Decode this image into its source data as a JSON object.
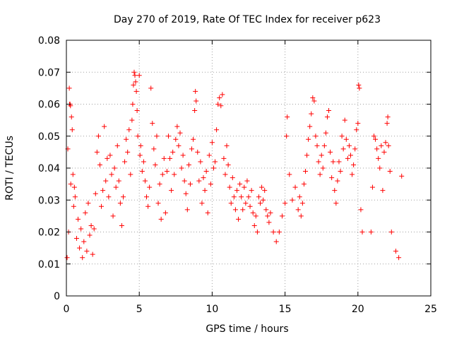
{
  "chart_data": {
    "type": "scatter",
    "title": "Day 270 of 2019, Rate Of TEC Index for receiver p623",
    "xlabel": "GPS time / hours",
    "ylabel": "ROTI / TECUs",
    "xlim": [
      0,
      25
    ],
    "ylim": [
      0,
      0.08
    ],
    "xticks": [
      0,
      5,
      10,
      15,
      20,
      25
    ],
    "xtick_labels": [
      "0",
      "5",
      "10",
      "15",
      "20",
      "25"
    ],
    "yticks": [
      0,
      0.01,
      0.02,
      0.03,
      0.04,
      0.05,
      0.06,
      0.07,
      0.08
    ],
    "ytick_labels": [
      "0",
      "0.01",
      "0.02",
      "0.03",
      "0.04",
      "0.05",
      "0.06",
      "0.07",
      "0.08"
    ],
    "grid": true,
    "marker": "+",
    "color": "#ff0000",
    "series": [
      {
        "name": "ROTI",
        "points": [
          [
            0.05,
            0.012
          ],
          [
            0.1,
            0.046
          ],
          [
            0.15,
            0.02
          ],
          [
            0.2,
            0.065
          ],
          [
            0.22,
            0.06
          ],
          [
            0.25,
            0.06
          ],
          [
            0.28,
            0.0595
          ],
          [
            0.3,
            0.035
          ],
          [
            0.35,
            0.056
          ],
          [
            0.4,
            0.052
          ],
          [
            0.45,
            0.038
          ],
          [
            0.5,
            0.028
          ],
          [
            0.55,
            0.034
          ],
          [
            0.6,
            0.031
          ],
          [
            0.7,
            0.018
          ],
          [
            0.8,
            0.024
          ],
          [
            0.9,
            0.015
          ],
          [
            1.0,
            0.021
          ],
          [
            1.1,
            0.012
          ],
          [
            1.2,
            0.017
          ],
          [
            1.3,
            0.026
          ],
          [
            1.4,
            0.014
          ],
          [
            1.5,
            0.029
          ],
          [
            1.6,
            0.019
          ],
          [
            1.7,
            0.022
          ],
          [
            1.8,
            0.013
          ],
          [
            1.9,
            0.021
          ],
          [
            2.0,
            0.032
          ],
          [
            2.1,
            0.045
          ],
          [
            2.2,
            0.05
          ],
          [
            2.3,
            0.041
          ],
          [
            2.4,
            0.028
          ],
          [
            2.5,
            0.033
          ],
          [
            2.6,
            0.053
          ],
          [
            2.7,
            0.036
          ],
          [
            2.8,
            0.043
          ],
          [
            2.9,
            0.031
          ],
          [
            3.0,
            0.044
          ],
          [
            3.1,
            0.038
          ],
          [
            3.2,
            0.025
          ],
          [
            3.3,
            0.04
          ],
          [
            3.4,
            0.034
          ],
          [
            3.5,
            0.047
          ],
          [
            3.6,
            0.036
          ],
          [
            3.7,
            0.029
          ],
          [
            3.8,
            0.022
          ],
          [
            3.9,
            0.031
          ],
          [
            4.0,
            0.042
          ],
          [
            4.1,
            0.049
          ],
          [
            4.2,
            0.045
          ],
          [
            4.3,
            0.052
          ],
          [
            4.4,
            0.038
          ],
          [
            4.5,
            0.055
          ],
          [
            4.55,
            0.06
          ],
          [
            4.6,
            0.066
          ],
          [
            4.65,
            0.07
          ],
          [
            4.7,
            0.069
          ],
          [
            4.75,
            0.067
          ],
          [
            4.8,
            0.064
          ],
          [
            4.85,
            0.058
          ],
          [
            4.9,
            0.05
          ],
          [
            5.0,
            0.069
          ],
          [
            5.05,
            0.044
          ],
          [
            5.1,
            0.047
          ],
          [
            5.2,
            0.039
          ],
          [
            5.3,
            0.042
          ],
          [
            5.4,
            0.036
          ],
          [
            5.5,
            0.031
          ],
          [
            5.6,
            0.028
          ],
          [
            5.7,
            0.034
          ],
          [
            5.8,
            0.065
          ],
          [
            5.9,
            0.054
          ],
          [
            6.0,
            0.046
          ],
          [
            6.1,
            0.041
          ],
          [
            6.2,
            0.05
          ],
          [
            6.3,
            0.029
          ],
          [
            6.4,
            0.035
          ],
          [
            6.5,
            0.024
          ],
          [
            6.6,
            0.038
          ],
          [
            6.7,
            0.043
          ],
          [
            6.8,
            0.026
          ],
          [
            6.9,
            0.039
          ],
          [
            7.0,
            0.05
          ],
          [
            7.1,
            0.043
          ],
          [
            7.2,
            0.033
          ],
          [
            7.3,
            0.045
          ],
          [
            7.4,
            0.038
          ],
          [
            7.5,
            0.049
          ],
          [
            7.6,
            0.053
          ],
          [
            7.7,
            0.047
          ],
          [
            7.8,
            0.051
          ],
          [
            7.9,
            0.04
          ],
          [
            8.0,
            0.044
          ],
          [
            8.1,
            0.036
          ],
          [
            8.2,
            0.032
          ],
          [
            8.3,
            0.027
          ],
          [
            8.4,
            0.041
          ],
          [
            8.5,
            0.035
          ],
          [
            8.6,
            0.046
          ],
          [
            8.7,
            0.049
          ],
          [
            8.8,
            0.058
          ],
          [
            8.85,
            0.064
          ],
          [
            8.9,
            0.061
          ],
          [
            9.0,
            0.045
          ],
          [
            9.1,
            0.036
          ],
          [
            9.2,
            0.042
          ],
          [
            9.3,
            0.029
          ],
          [
            9.4,
            0.037
          ],
          [
            9.5,
            0.033
          ],
          [
            9.6,
            0.039
          ],
          [
            9.7,
            0.026
          ],
          [
            9.8,
            0.044
          ],
          [
            9.9,
            0.035
          ],
          [
            10.0,
            0.048
          ],
          [
            10.1,
            0.04
          ],
          [
            10.2,
            0.042
          ],
          [
            10.3,
            0.052
          ],
          [
            10.4,
            0.06
          ],
          [
            10.5,
            0.062
          ],
          [
            10.6,
            0.0595
          ],
          [
            10.7,
            0.063
          ],
          [
            10.8,
            0.043
          ],
          [
            10.9,
            0.038
          ],
          [
            11.0,
            0.047
          ],
          [
            11.1,
            0.041
          ],
          [
            11.2,
            0.034
          ],
          [
            11.3,
            0.029
          ],
          [
            11.4,
            0.037
          ],
          [
            11.5,
            0.031
          ],
          [
            11.6,
            0.027
          ],
          [
            11.7,
            0.033
          ],
          [
            11.8,
            0.024
          ],
          [
            11.9,
            0.035
          ],
          [
            12.0,
            0.031
          ],
          [
            12.1,
            0.027
          ],
          [
            12.2,
            0.034
          ],
          [
            12.3,
            0.029
          ],
          [
            12.4,
            0.036
          ],
          [
            12.5,
            0.031
          ],
          [
            12.6,
            0.028
          ],
          [
            12.7,
            0.033
          ],
          [
            12.8,
            0.026
          ],
          [
            12.9,
            0.022
          ],
          [
            13.0,
            0.025
          ],
          [
            13.1,
            0.02
          ],
          [
            13.2,
            0.031
          ],
          [
            13.3,
            0.029
          ],
          [
            13.4,
            0.034
          ],
          [
            13.5,
            0.03
          ],
          [
            13.6,
            0.033
          ],
          [
            13.7,
            0.027
          ],
          [
            13.8,
            0.025
          ],
          [
            13.9,
            0.023
          ],
          [
            14.0,
            0.026
          ],
          [
            14.2,
            0.02
          ],
          [
            14.4,
            0.017
          ],
          [
            14.6,
            0.02
          ],
          [
            14.8,
            0.025
          ],
          [
            15.0,
            0.029
          ],
          [
            15.1,
            0.05
          ],
          [
            15.15,
            0.056
          ],
          [
            15.3,
            0.038
          ],
          [
            15.5,
            0.03
          ],
          [
            15.7,
            0.034
          ],
          [
            15.9,
            0.027
          ],
          [
            16.0,
            0.031
          ],
          [
            16.1,
            0.025
          ],
          [
            16.2,
            0.029
          ],
          [
            16.3,
            0.035
          ],
          [
            16.4,
            0.039
          ],
          [
            16.5,
            0.044
          ],
          [
            16.6,
            0.049
          ],
          [
            16.7,
            0.053
          ],
          [
            16.8,
            0.057
          ],
          [
            16.9,
            0.062
          ],
          [
            17.0,
            0.061
          ],
          [
            17.1,
            0.05
          ],
          [
            17.2,
            0.047
          ],
          [
            17.3,
            0.042
          ],
          [
            17.4,
            0.038
          ],
          [
            17.5,
            0.044
          ],
          [
            17.6,
            0.04
          ],
          [
            17.7,
            0.047
          ],
          [
            17.8,
            0.051
          ],
          [
            17.9,
            0.056
          ],
          [
            18.0,
            0.058
          ],
          [
            18.1,
            0.045
          ],
          [
            18.2,
            0.037
          ],
          [
            18.3,
            0.042
          ],
          [
            18.4,
            0.033
          ],
          [
            18.5,
            0.029
          ],
          [
            18.6,
            0.036
          ],
          [
            18.7,
            0.042
          ],
          [
            18.8,
            0.039
          ],
          [
            18.9,
            0.05
          ],
          [
            19.0,
            0.046
          ],
          [
            19.1,
            0.055
          ],
          [
            19.2,
            0.049
          ],
          [
            19.3,
            0.043
          ],
          [
            19.4,
            0.047
          ],
          [
            19.5,
            0.044
          ],
          [
            19.6,
            0.038
          ],
          [
            19.7,
            0.041
          ],
          [
            19.8,
            0.046
          ],
          [
            19.9,
            0.052
          ],
          [
            20.0,
            0.054
          ],
          [
            20.05,
            0.066
          ],
          [
            20.1,
            0.065
          ],
          [
            20.2,
            0.027
          ],
          [
            20.3,
            0.02
          ],
          [
            20.9,
            0.02
          ],
          [
            21.0,
            0.034
          ],
          [
            21.1,
            0.05
          ],
          [
            21.2,
            0.049
          ],
          [
            21.3,
            0.046
          ],
          [
            21.4,
            0.043
          ],
          [
            21.5,
            0.04
          ],
          [
            21.6,
            0.047
          ],
          [
            21.7,
            0.033
          ],
          [
            21.8,
            0.045
          ],
          [
            21.9,
            0.048
          ],
          [
            22.0,
            0.054
          ],
          [
            22.05,
            0.056
          ],
          [
            22.1,
            0.047
          ],
          [
            22.2,
            0.039
          ],
          [
            22.3,
            0.02
          ],
          [
            22.6,
            0.014
          ],
          [
            22.8,
            0.012
          ],
          [
            23.0,
            0.0375
          ]
        ]
      }
    ]
  }
}
